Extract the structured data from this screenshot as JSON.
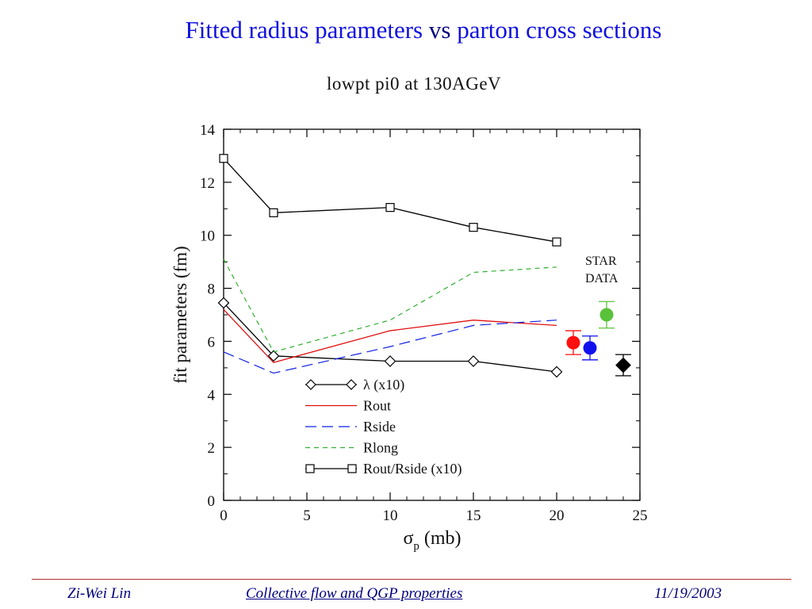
{
  "slide": {
    "title_part1": "Fitted radius parameters",
    "title_vs": "vs",
    "title_part2": "parton cross sections",
    "footer_author": "Zi-Wei Lin",
    "footer_title": "Collective flow and QGP properties",
    "footer_date": "11/19/2003"
  },
  "chart_data": {
    "type": "line",
    "title": "lowpt pi0 at 130AGeV",
    "xlabel_symbol": "σ",
    "xlabel_sub": "p",
    "xlabel_unit": "(mb)",
    "ylabel": "fit parameters (fm)",
    "xlim": [
      0,
      25
    ],
    "ylim": [
      0,
      14
    ],
    "xticks": [
      "0",
      "5",
      "10",
      "15",
      "20",
      "25"
    ],
    "yticks": [
      "0",
      "2",
      "4",
      "6",
      "8",
      "10",
      "12",
      "14"
    ],
    "grid": false,
    "legend_position": "bottom-center",
    "series": [
      {
        "name": "λ (x10)",
        "style": "solid-diamond",
        "color": "#000000",
        "x": [
          0,
          3,
          10,
          15,
          20
        ],
        "y": [
          7.45,
          5.45,
          5.25,
          5.25,
          4.85
        ]
      },
      {
        "name": "Rout",
        "style": "solid",
        "color": "#e01010",
        "x": [
          0,
          3,
          10,
          15,
          20
        ],
        "y": [
          7.2,
          5.2,
          6.4,
          6.8,
          6.6
        ]
      },
      {
        "name": "Rside",
        "style": "dashed",
        "color": "#1020e0",
        "x": [
          0,
          3,
          10,
          15,
          20
        ],
        "y": [
          5.6,
          4.8,
          5.8,
          6.6,
          6.8
        ]
      },
      {
        "name": "Rlong",
        "style": "dotted",
        "color": "#30b030",
        "x": [
          0,
          3,
          10,
          15,
          20
        ],
        "y": [
          9.1,
          5.6,
          6.8,
          8.6,
          8.8
        ]
      },
      {
        "name": "Rout/Rside (x10)",
        "style": "solid-square",
        "color": "#000000",
        "x": [
          0,
          3,
          10,
          15,
          20
        ],
        "y": [
          12.9,
          10.85,
          11.05,
          10.3,
          9.75
        ]
      }
    ],
    "data_annotation": "STAR\nDATA",
    "star_data": [
      {
        "name": "Rout",
        "color": "#ff1010",
        "x": 21,
        "y": 5.95,
        "err": 0.45
      },
      {
        "name": "Rside",
        "color": "#1010ee",
        "x": 22,
        "y": 5.75,
        "err": 0.45
      },
      {
        "name": "Rlong",
        "color": "#5ac23a",
        "x": 23,
        "y": 7.0,
        "err": 0.5
      },
      {
        "name": "λ (x10)",
        "color": "#000000",
        "x": 24,
        "y": 5.1,
        "err": 0.4
      }
    ]
  }
}
